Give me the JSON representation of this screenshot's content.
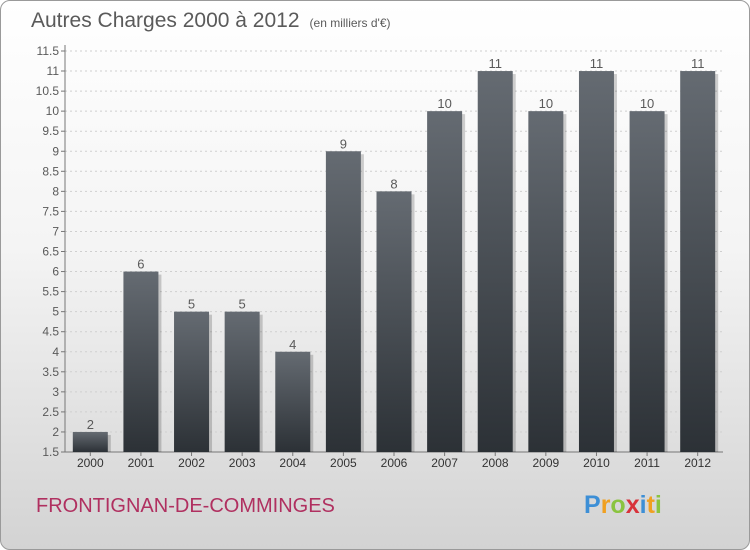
{
  "chart_data": {
    "type": "bar",
    "title": "Autres Charges 2000 à 2012",
    "subtitle": "(en milliers d'€)",
    "categories": [
      "2000",
      "2001",
      "2002",
      "2003",
      "2004",
      "2005",
      "2006",
      "2007",
      "2008",
      "2009",
      "2010",
      "2011",
      "2012"
    ],
    "values": [
      2,
      6,
      5,
      5,
      4,
      9,
      8,
      10,
      11,
      10,
      11,
      10,
      11
    ],
    "data_labels": [
      "2",
      "6",
      "5",
      "5",
      "4",
      "9",
      "8",
      "10",
      "11",
      "10",
      "11",
      "10",
      "11"
    ],
    "ylim": [
      1.5,
      11.5
    ],
    "yticks": [
      "1.5",
      "2",
      "2.5",
      "3",
      "3.5",
      "4",
      "4.5",
      "5",
      "5.5",
      "6",
      "6.5",
      "7",
      "7.5",
      "8",
      "8.5",
      "9",
      "9.5",
      "10",
      "10.5",
      "11",
      "11.5"
    ],
    "xlabel": "",
    "ylabel": "",
    "grid": "horizontal",
    "legend": "none"
  },
  "footer": {
    "city": "FRONTIGNAN-DE-COMMINGES",
    "logo_letters": [
      "P",
      "r",
      "o",
      "x",
      "i",
      "t",
      "i"
    ],
    "logo_colors": [
      "#3d8fd6",
      "#f0a020",
      "#8ac43f",
      "#d8323a",
      "#3d8fd6",
      "#f0a020",
      "#8ac43f"
    ]
  },
  "colors": {
    "bar_top": "#656b72",
    "bar_bottom": "#2c3136",
    "text": "#5a5a5a",
    "grid": "#cfcfcf",
    "city": "#b03060"
  }
}
